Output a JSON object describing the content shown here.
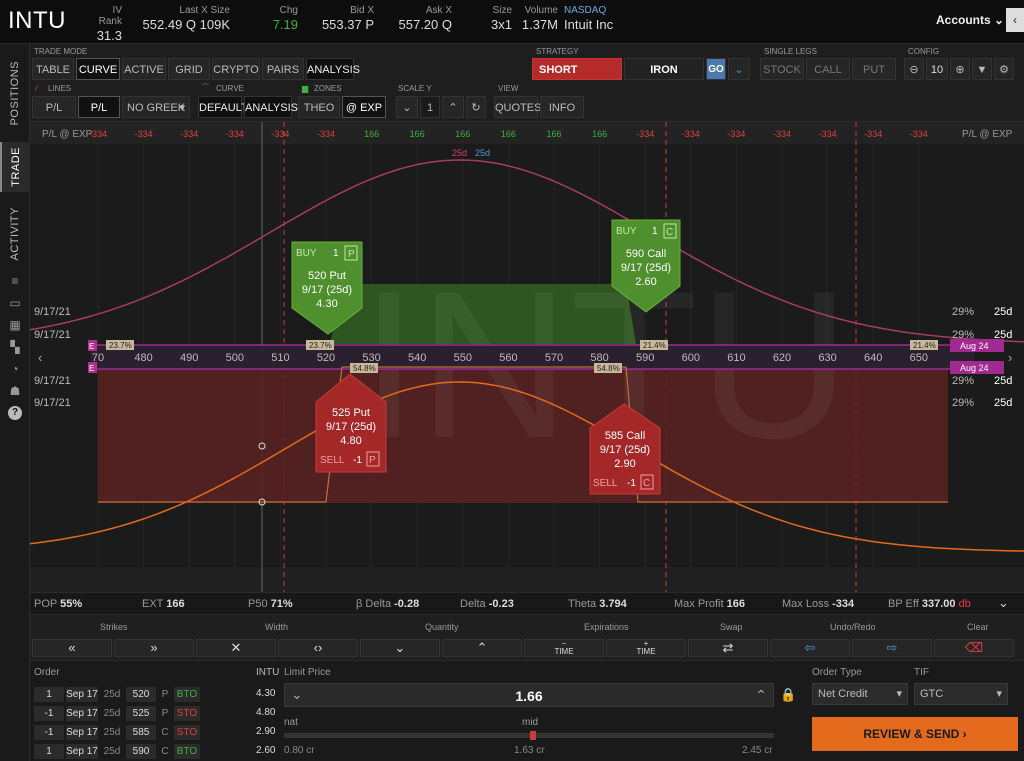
{
  "header": {
    "symbol": "INTU",
    "iv_rank_label": "IV Rank",
    "iv_rank": "31.3",
    "last_label": "Last X Size",
    "last": "552.49 Q 109K",
    "chg_label": "Chg",
    "chg": "7.19",
    "bid_label": "Bid X",
    "bid": "553.37 P",
    "ask_label": "Ask X",
    "ask": "557.20 Q",
    "size_label": "Size",
    "size": "3x1",
    "volume_label": "Volume",
    "volume": "1.37M",
    "exchange": "NASDAQ",
    "company": "Intuit Inc",
    "accounts_label": "Accounts"
  },
  "rail": {
    "positions": "POSITIONS",
    "trade": "TRADE",
    "activity": "ACTIVITY"
  },
  "toolbar": {
    "trade_mode_label": "TRADE MODE",
    "modes": [
      "TABLE",
      "CURVE",
      "ACTIVE",
      "GRID",
      "CRYPTO",
      "PAIRS",
      "ANALYSIS"
    ],
    "strategy_label": "STRATEGY",
    "direction": "SHORT",
    "strategy": "IRON CONDOR",
    "go": "GO",
    "single_legs_label": "SINGLE LEGS",
    "legs": [
      "STOCK",
      "CALL",
      "PUT"
    ],
    "config_label": "CONFIG",
    "zoom": "10",
    "lines_label": "LINES",
    "pl_theo": "P/L THEO",
    "pl_exp": "P/L EXP",
    "greek": "NO GREEK",
    "curve_label": "CURVE",
    "default": "DEFAULT",
    "analysis": "ANALYSIS",
    "zones_label": "ZONES",
    "theo": "THEO",
    "at_exp": "@ EXP",
    "scale_label": "SCALE Y",
    "scale": "1",
    "view_label": "VIEW",
    "quotes": "QUOTES",
    "info": "INFO"
  },
  "chart": {
    "pl_label": "P/L @ EXP",
    "pl_values": [
      "-334",
      "-334",
      "-334",
      "-334",
      "-334",
      "-334",
      "166",
      "166",
      "166",
      "166",
      "166",
      "166",
      "-334",
      "-334",
      "-334",
      "-334",
      "-334",
      "-334",
      "-334"
    ],
    "watermark": "INTU",
    "strikes": [
      "70",
      "480",
      "490",
      "500",
      "510",
      "520",
      "530",
      "540",
      "550",
      "560",
      "570",
      "580",
      "590",
      "600",
      "610",
      "620",
      "630",
      "640",
      "650"
    ],
    "curve_top_labels": [
      "25d",
      "25d"
    ],
    "left_dates": [
      "9/17/21",
      "9/17/21",
      "9/17/21",
      "9/17/21"
    ],
    "right_pcts": [
      "29%",
      "29%",
      "29%",
      "29%"
    ],
    "right_dtes": [
      "25d",
      "25d",
      "25d",
      "25d"
    ],
    "prob_tags_top": [
      "23.7%",
      "23.7%",
      "21.4%",
      "21.4%"
    ],
    "prob_tags_bottom": [
      "54.8%",
      "54.8%"
    ],
    "aug_tag": "Aug 24",
    "e_tag": "E",
    "legs": [
      {
        "side": "BUY",
        "qty": "1",
        "type": "P",
        "desc": "520 Put",
        "exp": "9/17 (25d)",
        "price": "4.30"
      },
      {
        "side": "BUY",
        "qty": "1",
        "type": "C",
        "desc": "590 Call",
        "exp": "9/17 (25d)",
        "price": "2.60"
      },
      {
        "side": "SELL",
        "qty": "-1",
        "type": "P",
        "desc": "525 Put",
        "exp": "9/17 (25d)",
        "price": "4.80"
      },
      {
        "side": "SELL",
        "qty": "-1",
        "type": "C",
        "desc": "585 Call",
        "exp": "9/17 (25d)",
        "price": "2.90"
      }
    ]
  },
  "stats": {
    "pop_label": "POP",
    "pop": "55%",
    "ext_label": "EXT",
    "ext": "166",
    "p50_label": "P50",
    "p50": "71%",
    "bdelta_label": "β Delta",
    "bdelta": "-0.28",
    "delta_label": "Delta",
    "delta": "-0.23",
    "theta_label": "Theta",
    "theta": "3.794",
    "maxp_label": "Max Profit",
    "maxp": "166",
    "maxl_label": "Max Loss",
    "maxl": "-334",
    "bp_label": "BP Eff",
    "bp": "337.00",
    "bp_unit": "db"
  },
  "controls": {
    "strikes": "Strikes",
    "width": "Width",
    "quantity": "Quantity",
    "expirations": "Expirations",
    "swap": "Swap",
    "undo": "Undo/Redo",
    "clear": "Clear",
    "time": "TIME"
  },
  "order": {
    "order_label": "Order",
    "symbol_label": "INTU",
    "limit_label": "Limit Price",
    "limit": "1.66",
    "type_label": "Order Type",
    "type": "Net Credit",
    "tif_label": "TIF",
    "tif": "GTC",
    "nat_label": "nat",
    "nat": "0.80 cr",
    "mid_label": "mid",
    "mid": "1.63 cr",
    "far": "2.45 cr",
    "send": "REVIEW & SEND",
    "rows": [
      {
        "qty": "1",
        "exp": "Sep 17",
        "dte": "25d",
        "strike": "520",
        "pc": "P",
        "action": "BTO",
        "price": "4.30"
      },
      {
        "qty": "-1",
        "exp": "Sep 17",
        "dte": "25d",
        "strike": "525",
        "pc": "P",
        "action": "STO",
        "price": "4.80"
      },
      {
        "qty": "-1",
        "exp": "Sep 17",
        "dte": "25d",
        "strike": "585",
        "pc": "C",
        "action": "STO",
        "price": "2.90"
      },
      {
        "qty": "1",
        "exp": "Sep 17",
        "dte": "25d",
        "strike": "590",
        "pc": "C",
        "action": "BTO",
        "price": "2.60"
      }
    ]
  },
  "colors": {
    "green": "#4a8a2a",
    "red": "#a02a2a",
    "orange": "#e36a1c",
    "profit": "#3eb13e",
    "loss": "#e04040",
    "magenta": "#b03090"
  }
}
